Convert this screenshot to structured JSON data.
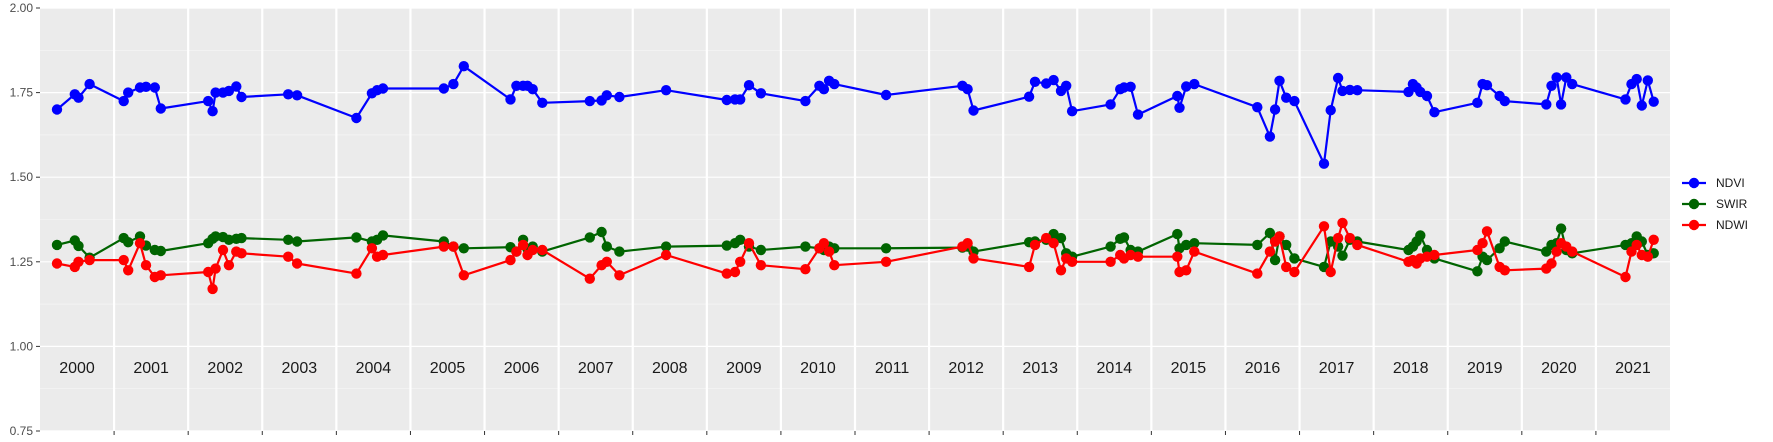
{
  "chart_data": {
    "type": "line",
    "title": "",
    "xlabel": "",
    "ylabel": "",
    "ylim": [
      0.75,
      2.0
    ],
    "y_ticks": [
      "0.75",
      "1.00",
      "1.25",
      "1.50",
      "1.75",
      "2.00"
    ],
    "x_range": [
      2000.0,
      2022.0
    ],
    "grid": true,
    "legend_position": "right",
    "year_labels": [
      "2000",
      "2001",
      "2002",
      "2003",
      "2004",
      "2005",
      "2006",
      "2007",
      "2008",
      "2009",
      "2010",
      "2011",
      "2012",
      "2013",
      "2014",
      "2015",
      "2016",
      "2017",
      "2018",
      "2019",
      "2020",
      "2021"
    ],
    "series": [
      {
        "name": "NDVI",
        "color": "#0000ff",
        "x": [
          2000.23,
          2000.47,
          2000.52,
          2000.67,
          2001.13,
          2001.19,
          2001.35,
          2001.43,
          2001.55,
          2001.63,
          2002.27,
          2002.33,
          2002.37,
          2002.47,
          2002.55,
          2002.65,
          2002.72,
          2003.35,
          2003.47,
          2004.27,
          2004.48,
          2004.55,
          2004.63,
          2005.45,
          2005.58,
          2005.72,
          2006.35,
          2006.43,
          2006.52,
          2006.58,
          2006.65,
          2006.78,
          2007.42,
          2007.58,
          2007.65,
          2007.82,
          2008.45,
          2009.27,
          2009.38,
          2009.45,
          2009.57,
          2009.73,
          2010.33,
          2010.52,
          2010.58,
          2010.65,
          2010.72,
          2011.42,
          2012.45,
          2012.52,
          2012.6,
          2013.35,
          2013.43,
          2013.58,
          2013.68,
          2013.78,
          2013.85,
          2013.93,
          2014.45,
          2014.58,
          2014.63,
          2014.72,
          2014.82,
          2015.35,
          2015.38,
          2015.47,
          2015.58,
          2016.43,
          2016.6,
          2016.67,
          2016.73,
          2016.82,
          2016.93,
          2017.33,
          2017.42,
          2017.52,
          2017.58,
          2017.68,
          2017.78,
          2018.47,
          2018.53,
          2018.58,
          2018.63,
          2018.72,
          2018.82,
          2019.4,
          2019.47,
          2019.53,
          2019.7,
          2019.77,
          2020.33,
          2020.4,
          2020.47,
          2020.53,
          2020.6,
          2020.68,
          2021.4,
          2021.48,
          2021.55,
          2021.62,
          2021.7,
          2021.78
        ],
        "y": [
          1.7,
          1.745,
          1.735,
          1.775,
          1.725,
          1.75,
          1.765,
          1.767,
          1.765,
          1.703,
          1.725,
          1.695,
          1.75,
          1.75,
          1.755,
          1.768,
          1.737,
          1.745,
          1.742,
          1.675,
          1.748,
          1.757,
          1.762,
          1.762,
          1.775,
          1.828,
          1.73,
          1.77,
          1.77,
          1.77,
          1.76,
          1.72,
          1.725,
          1.727,
          1.742,
          1.737,
          1.757,
          1.728,
          1.73,
          1.73,
          1.772,
          1.748,
          1.725,
          1.77,
          1.76,
          1.785,
          1.775,
          1.743,
          1.77,
          1.76,
          1.697,
          1.738,
          1.782,
          1.777,
          1.787,
          1.755,
          1.77,
          1.695,
          1.715,
          1.76,
          1.765,
          1.767,
          1.685,
          1.74,
          1.705,
          1.768,
          1.775,
          1.707,
          1.62,
          1.7,
          1.785,
          1.735,
          1.725,
          1.54,
          1.698,
          1.793,
          1.755,
          1.758,
          1.757,
          1.752,
          1.775,
          1.765,
          1.752,
          1.74,
          1.692,
          1.72,
          1.775,
          1.772,
          1.74,
          1.725,
          1.715,
          1.77,
          1.795,
          1.715,
          1.795,
          1.775,
          1.73,
          1.775,
          1.79,
          1.712,
          1.786,
          1.723
        ]
      },
      {
        "name": "SWIR",
        "color": "#006400",
        "x": [
          2000.23,
          2000.47,
          2000.52,
          2000.67,
          2001.13,
          2001.19,
          2001.35,
          2001.43,
          2001.55,
          2001.63,
          2002.27,
          2002.33,
          2002.37,
          2002.47,
          2002.55,
          2002.65,
          2002.72,
          2003.35,
          2003.47,
          2004.27,
          2004.48,
          2004.55,
          2004.63,
          2005.45,
          2005.58,
          2005.72,
          2006.35,
          2006.43,
          2006.52,
          2006.58,
          2006.65,
          2006.78,
          2007.42,
          2007.58,
          2007.65,
          2007.82,
          2008.45,
          2009.27,
          2009.38,
          2009.45,
          2009.57,
          2009.73,
          2010.33,
          2010.52,
          2010.58,
          2010.65,
          2010.72,
          2011.42,
          2012.45,
          2012.52,
          2012.6,
          2013.35,
          2013.43,
          2013.58,
          2013.68,
          2013.78,
          2013.85,
          2013.93,
          2014.45,
          2014.58,
          2014.63,
          2014.72,
          2014.82,
          2015.35,
          2015.38,
          2015.47,
          2015.58,
          2016.43,
          2016.6,
          2016.67,
          2016.73,
          2016.82,
          2016.93,
          2017.33,
          2017.42,
          2017.52,
          2017.58,
          2017.68,
          2017.78,
          2018.47,
          2018.53,
          2018.58,
          2018.63,
          2018.72,
          2018.82,
          2019.4,
          2019.47,
          2019.53,
          2019.7,
          2019.77,
          2020.33,
          2020.4,
          2020.47,
          2020.53,
          2020.6,
          2020.68,
          2021.4,
          2021.48,
          2021.55,
          2021.62,
          2021.7,
          2021.78
        ],
        "y": [
          1.3,
          1.313,
          1.297,
          1.262,
          1.32,
          1.308,
          1.325,
          1.298,
          1.285,
          1.282,
          1.305,
          1.318,
          1.325,
          1.323,
          1.315,
          1.318,
          1.32,
          1.315,
          1.31,
          1.322,
          1.31,
          1.315,
          1.328,
          1.31,
          1.295,
          1.29,
          1.293,
          1.28,
          1.315,
          1.288,
          1.295,
          1.28,
          1.322,
          1.338,
          1.295,
          1.28,
          1.295,
          1.298,
          1.305,
          1.315,
          1.295,
          1.285,
          1.295,
          1.29,
          1.285,
          1.295,
          1.29,
          1.29,
          1.292,
          1.295,
          1.28,
          1.308,
          1.31,
          1.315,
          1.332,
          1.32,
          1.275,
          1.265,
          1.295,
          1.318,
          1.322,
          1.285,
          1.28,
          1.332,
          1.29,
          1.3,
          1.305,
          1.3,
          1.335,
          1.255,
          1.325,
          1.3,
          1.26,
          1.235,
          1.31,
          1.295,
          1.268,
          1.315,
          1.31,
          1.285,
          1.295,
          1.31,
          1.328,
          1.285,
          1.26,
          1.222,
          1.265,
          1.255,
          1.29,
          1.31,
          1.28,
          1.3,
          1.305,
          1.348,
          1.285,
          1.275,
          1.3,
          1.305,
          1.325,
          1.31,
          1.27,
          1.275
        ]
      },
      {
        "name": "NDWI",
        "color": "#ff0000",
        "x": [
          2000.23,
          2000.47,
          2000.52,
          2000.67,
          2001.13,
          2001.19,
          2001.35,
          2001.43,
          2001.55,
          2001.63,
          2002.27,
          2002.33,
          2002.37,
          2002.47,
          2002.55,
          2002.65,
          2002.72,
          2003.35,
          2003.47,
          2004.27,
          2004.48,
          2004.55,
          2004.63,
          2005.45,
          2005.58,
          2005.72,
          2006.35,
          2006.43,
          2006.52,
          2006.58,
          2006.65,
          2006.78,
          2007.42,
          2007.58,
          2007.65,
          2007.82,
          2008.45,
          2009.27,
          2009.38,
          2009.45,
          2009.57,
          2009.73,
          2010.33,
          2010.52,
          2010.58,
          2010.65,
          2010.72,
          2011.42,
          2012.45,
          2012.52,
          2012.6,
          2013.35,
          2013.43,
          2013.58,
          2013.68,
          2013.78,
          2013.85,
          2013.93,
          2014.45,
          2014.58,
          2014.63,
          2014.72,
          2014.82,
          2015.35,
          2015.38,
          2015.47,
          2015.58,
          2016.43,
          2016.6,
          2016.67,
          2016.73,
          2016.82,
          2016.93,
          2017.33,
          2017.42,
          2017.52,
          2017.58,
          2017.68,
          2017.78,
          2018.47,
          2018.53,
          2018.58,
          2018.63,
          2018.72,
          2018.82,
          2019.4,
          2019.47,
          2019.53,
          2019.7,
          2019.77,
          2020.33,
          2020.4,
          2020.47,
          2020.53,
          2020.6,
          2020.68,
          2021.4,
          2021.48,
          2021.55,
          2021.62,
          2021.7,
          2021.78
        ],
        "y": [
          1.245,
          1.235,
          1.25,
          1.255,
          1.255,
          1.225,
          1.305,
          1.24,
          1.205,
          1.21,
          1.22,
          1.17,
          1.23,
          1.285,
          1.24,
          1.28,
          1.275,
          1.265,
          1.245,
          1.215,
          1.29,
          1.265,
          1.27,
          1.295,
          1.295,
          1.21,
          1.255,
          1.28,
          1.3,
          1.27,
          1.285,
          1.285,
          1.2,
          1.24,
          1.25,
          1.21,
          1.27,
          1.215,
          1.22,
          1.25,
          1.305,
          1.24,
          1.228,
          1.29,
          1.305,
          1.28,
          1.24,
          1.25,
          1.295,
          1.305,
          1.26,
          1.235,
          1.3,
          1.32,
          1.305,
          1.225,
          1.26,
          1.25,
          1.25,
          1.27,
          1.26,
          1.27,
          1.265,
          1.265,
          1.22,
          1.225,
          1.28,
          1.215,
          1.28,
          1.31,
          1.325,
          1.235,
          1.22,
          1.355,
          1.22,
          1.32,
          1.365,
          1.32,
          1.3,
          1.25,
          1.255,
          1.245,
          1.26,
          1.265,
          1.27,
          1.285,
          1.305,
          1.34,
          1.235,
          1.225,
          1.23,
          1.245,
          1.28,
          1.305,
          1.295,
          1.28,
          1.205,
          1.28,
          1.3,
          1.27,
          1.265,
          1.315
        ]
      }
    ]
  }
}
